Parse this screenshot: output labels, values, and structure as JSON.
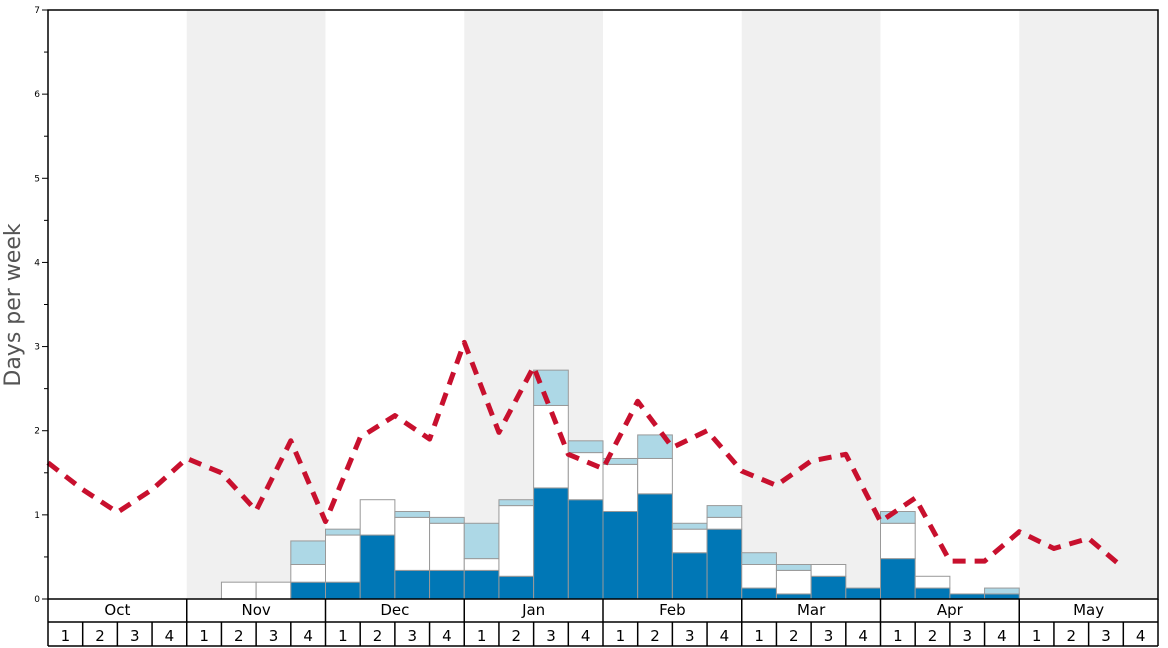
{
  "chart_data": {
    "type": "bar",
    "ylabel": "Days per week",
    "ylim": [
      0,
      7
    ],
    "yticks": [
      "0",
      "1",
      "2",
      "3",
      "4",
      "5",
      "6",
      "7"
    ],
    "months": [
      "Oct",
      "Nov",
      "Dec",
      "Jan",
      "Feb",
      "Mar",
      "Apr",
      "May"
    ],
    "week_labels": [
      "1",
      "2",
      "3",
      "4"
    ],
    "shaded_months": [
      false,
      true,
      false,
      true,
      false,
      true,
      false,
      true
    ],
    "colors": {
      "dark": "#0077b6",
      "light": "#add8e6",
      "white": "#ffffff",
      "line": "#c8102e",
      "shade": "#f0f0f0",
      "bar_edge": "#999999"
    },
    "series": [
      {
        "name": "",
        "color": "#0077b6",
        "values": [
          0,
          0,
          0,
          0,
          0,
          0,
          0,
          0.2,
          0.2,
          0.76,
          0.34,
          0.34,
          0.34,
          0.27,
          1.32,
          1.18,
          1.04,
          1.25,
          0.55,
          0.83,
          0.13,
          0.06,
          0.27,
          0.13,
          0.48,
          0.13,
          0.06,
          0.06,
          0,
          0,
          0,
          0
        ]
      },
      {
        "name": "",
        "color": "#ffffff",
        "values": [
          0,
          0,
          0,
          0,
          0,
          0.2,
          0.2,
          0.21,
          0.56,
          0.42,
          0.63,
          0.56,
          0.14,
          0.84,
          0.98,
          0.56,
          0.56,
          0.42,
          0.28,
          0.14,
          0.28,
          0.28,
          0.14,
          0,
          0.42,
          0.14,
          0,
          0,
          0,
          0,
          0,
          0
        ]
      },
      {
        "name": "",
        "color": "#add8e6",
        "values": [
          0,
          0,
          0,
          0,
          0,
          0,
          0,
          0.28,
          0.07,
          0,
          0.07,
          0.07,
          0.42,
          0.07,
          0.42,
          0.14,
          0.07,
          0.28,
          0.07,
          0.14,
          0.14,
          0.07,
          0,
          0,
          0.14,
          0,
          0,
          0.07,
          0,
          0,
          0,
          0
        ]
      },
      {
        "name": "",
        "type": "line",
        "color": "#c8102e",
        "values": [
          1.62,
          1.3,
          1.03,
          1.3,
          1.67,
          1.5,
          1.05,
          1.88,
          0.92,
          1.92,
          2.18,
          1.9,
          3.05,
          1.98,
          2.76,
          1.72,
          1.55,
          2.35,
          1.8,
          2.0,
          1.52,
          1.35,
          1.64,
          1.72,
          0.92,
          1.2,
          0.45,
          0.45,
          0.8,
          0.6,
          0.72,
          0.37
        ]
      }
    ]
  }
}
